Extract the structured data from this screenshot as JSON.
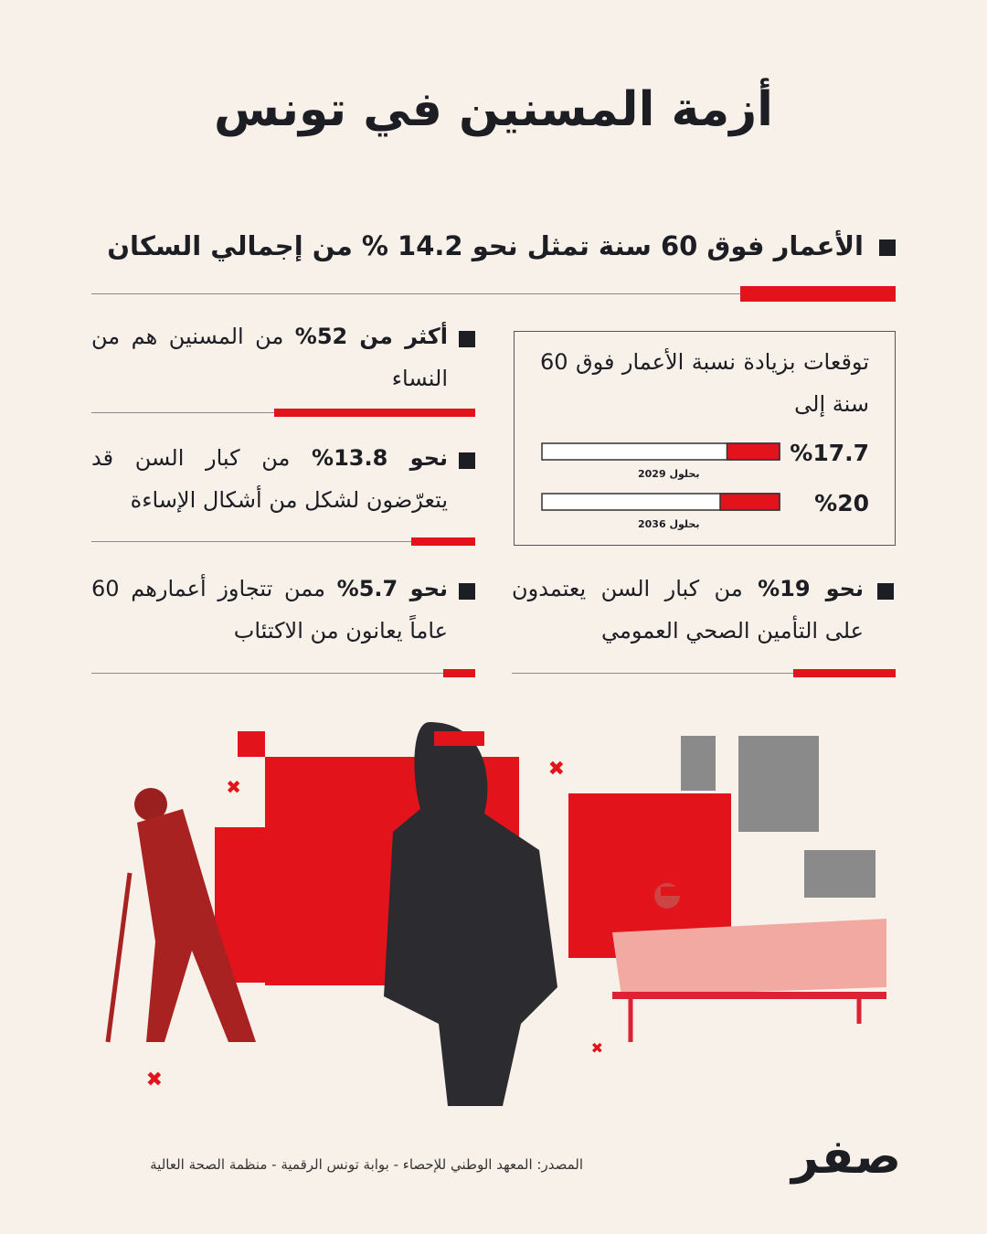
{
  "title": "أزمة المسنين في تونس",
  "headline": "الأعمار فوق 60 سنة تمثل نحو 14.2 % من إجمالي السكان",
  "stats": [
    {
      "lead": "أكثر من 52%",
      "text": "من المسنين هم من النساء"
    },
    {
      "lead": "نحو 13.8%",
      "text": "من كبار السن قد يتعرّضون لشكل من أشكال الإساءة"
    },
    {
      "lead": "نحو 5.7%",
      "text": "ممن تتجاوز أعمارهم 60 عاماً يعانون من الاكتئاب"
    },
    {
      "lead": "نحو 19%",
      "text": "من كبار السن يعتمدون على التأمين الصحي العمومي"
    }
  ],
  "forecast": {
    "heading": "توقعات بزيادة نسبة الأعمار فوق 60 سنة إلى",
    "values": [
      17.7,
      20
    ],
    "value_labels": [
      "%17.7",
      "%20"
    ],
    "dates": [
      "بحلول 2029",
      "بحلول 2036"
    ],
    "color": "#e3131b"
  },
  "source": "المصدر: المعهد الوطني للإحصاء - بوابة تونس الرقمية - منظمة الصحة العالية",
  "logo": "صفر"
}
